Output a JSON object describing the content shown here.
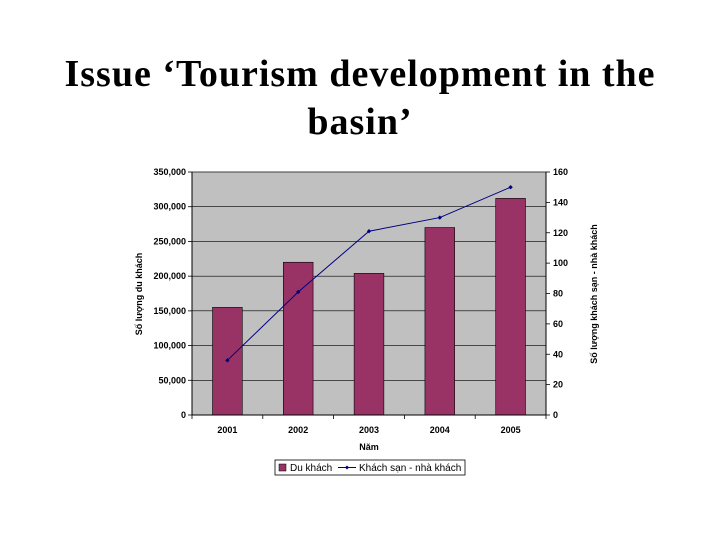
{
  "slide": {
    "title": "Issue ‘Tourism development in the basin’"
  },
  "chart_data": {
    "type": "bar",
    "title": "",
    "categories": [
      "2001",
      "2002",
      "2003",
      "2004",
      "2005"
    ],
    "xlabel": "Năm",
    "series": [
      {
        "name": "Du khách",
        "type": "bar",
        "axis": "left",
        "color": "#993366",
        "values": [
          155000,
          220000,
          204000,
          270000,
          312000
        ]
      },
      {
        "name": "Khách sạn - nhà khách",
        "type": "line",
        "axis": "right",
        "color": "#000080",
        "values": [
          36,
          81,
          121,
          130,
          150
        ]
      }
    ],
    "ylabel_left": "Số lượng du khách",
    "ylabel_right": "Số lượng khách sạn - nhà khách",
    "ylim_left": [
      0,
      350000
    ],
    "yticks_left": [
      "0",
      "50,000",
      "100,000",
      "150,000",
      "200,000",
      "250,000",
      "300,000",
      "350,000"
    ],
    "ylim_right": [
      0,
      160
    ],
    "yticks_right": [
      "0",
      "20",
      "40",
      "60",
      "80",
      "100",
      "120",
      "140",
      "160"
    ],
    "plot_background": "#c0c0c0",
    "grid": true,
    "legend": "bottom"
  }
}
